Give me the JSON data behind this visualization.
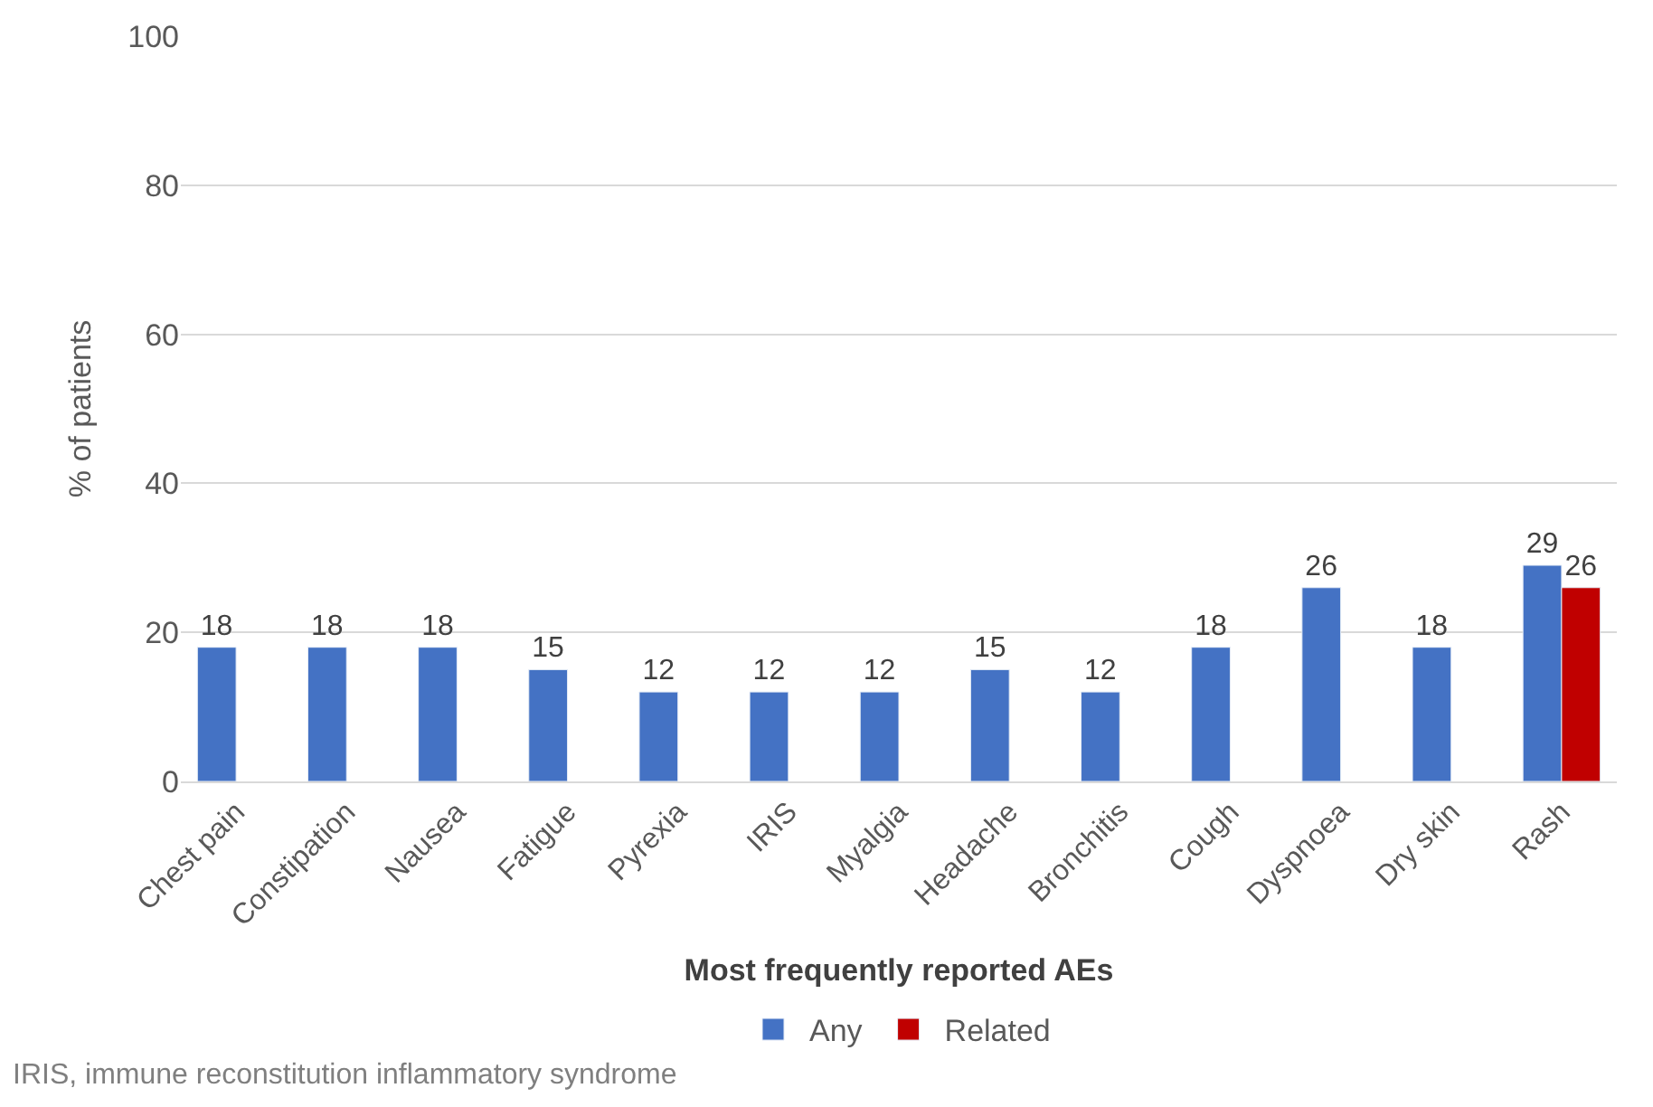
{
  "chart_data": {
    "type": "bar",
    "xlabel": "Most frequently reported AEs",
    "ylabel": "% of patients",
    "categories": [
      "Chest pain",
      "Constipation",
      "Nausea",
      "Fatigue",
      "Pyrexia",
      "IRIS",
      "Myalgia",
      "Headache",
      "Bronchitis",
      "Cough",
      "Dyspnoea",
      "Dry skin",
      "Rash"
    ],
    "series": [
      {
        "name": "Any",
        "color": "#4472c4",
        "values": [
          18,
          18,
          18,
          15,
          12,
          12,
          12,
          15,
          12,
          18,
          26,
          18,
          29
        ]
      },
      {
        "name": "Related",
        "color": "#c00000",
        "values": [
          null,
          null,
          null,
          null,
          null,
          null,
          null,
          null,
          null,
          null,
          null,
          null,
          26
        ]
      }
    ],
    "ylim": [
      0,
      100
    ],
    "yticks": [
      0,
      20,
      40,
      60,
      80,
      100
    ],
    "grid": "y",
    "legend": "bottom",
    "data_labels": true,
    "annotations": [
      "IRIS, immune reconstitution inflammatory syndrome"
    ]
  }
}
